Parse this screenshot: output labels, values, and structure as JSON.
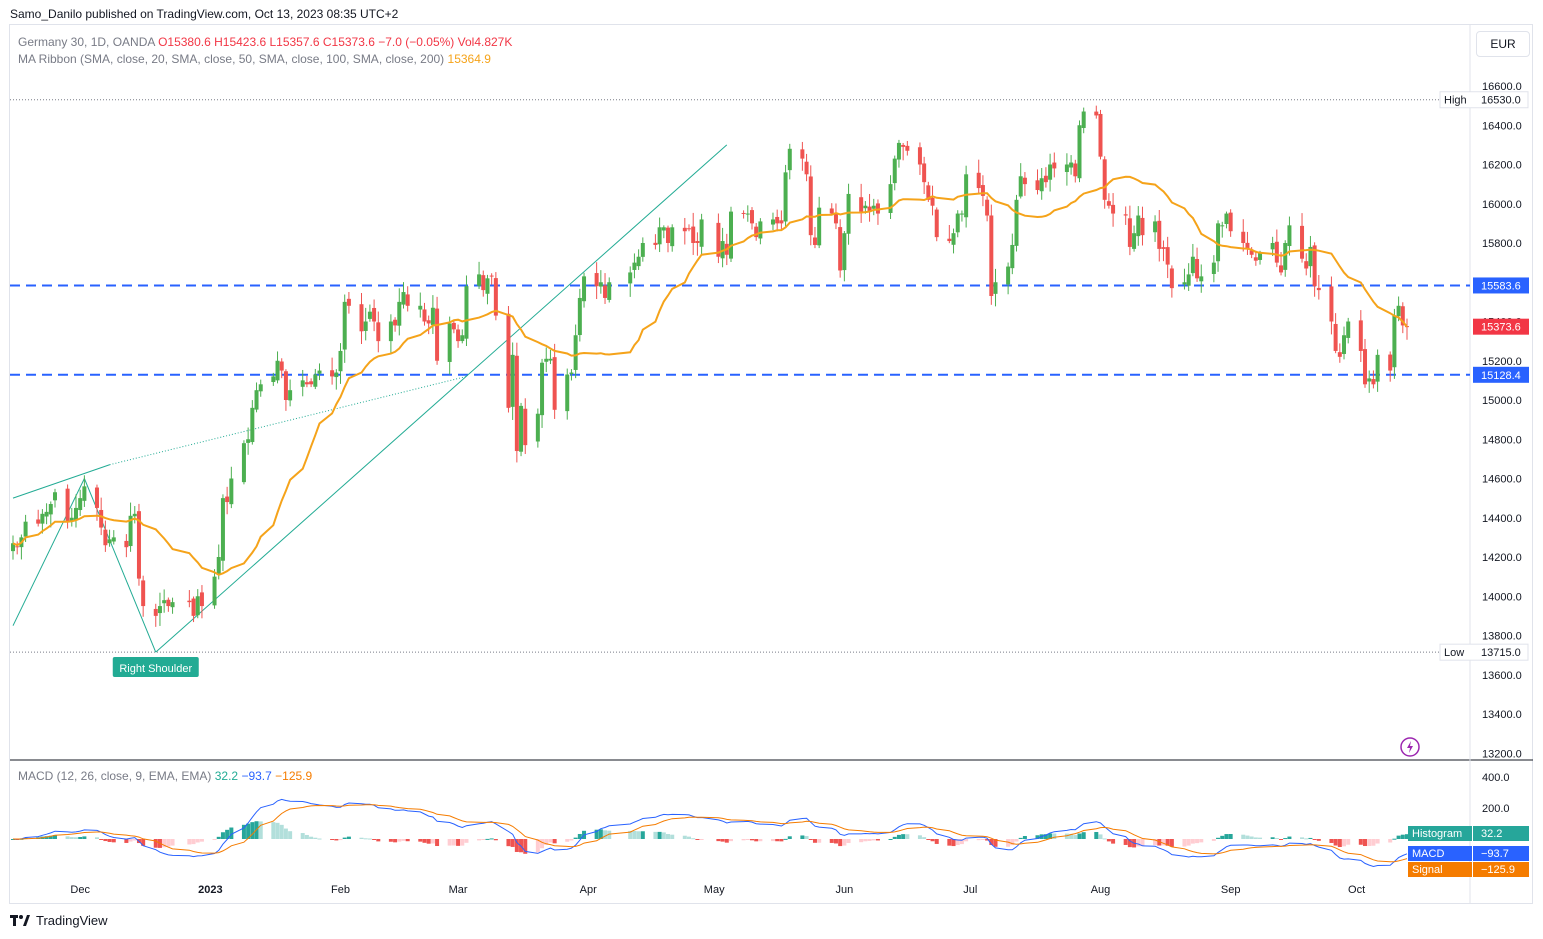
{
  "header": {
    "published_line": "Samo_Danilo published on TradingView.com, Oct 13, 2023 08:35 UTC+2",
    "currency": "EUR"
  },
  "legend": {
    "symbol": "Germany 30, 1D, OANDA",
    "ohlc": "O15380.6  H15423.6  L15357.6  C15373.6  −7.0 (−0.05%)",
    "volume": "Vol4.827K",
    "ma_label": "MA Ribbon (SMA, close, 20, SMA, close, 50, SMA, close, 100, SMA, close, 200)",
    "ma_value": "15364.9",
    "macd_label": "MACD (12, 26, close, 9, EMA, EMA)",
    "macd_hist": "32.2",
    "macd_macd": "−93.7",
    "macd_signal": "−125.9"
  },
  "colors": {
    "up": "#4caf50",
    "down": "#ef5350",
    "ma": "#f5a31a",
    "level": "#2962ff",
    "pattern": "#22ab94",
    "macd": "#2962ff",
    "signal": "#f57c00",
    "label_red": "#f23645"
  },
  "chart_data": [
    {
      "type": "candlestick",
      "series_name": "Germany 30",
      "ylim": [
        13200,
        16600
      ],
      "y_ticks": [
        "16600.0",
        "16400.0",
        "16200.0",
        "16000.0",
        "15800.0",
        "15600.0",
        "15400.0",
        "15200.0",
        "15000.0",
        "14800.0",
        "14600.0",
        "14400.0",
        "14200.0",
        "14000.0",
        "13800.0",
        "13600.0",
        "13400.0",
        "13200.0"
      ],
      "x_ticks": [
        "Dec",
        "2023",
        "Feb",
        "Mar",
        "Apr",
        "May",
        "Jun",
        "Jul",
        "Aug",
        "Sep",
        "Oct"
      ],
      "high": {
        "label": "High",
        "value": "16530.0",
        "y": 16530
      },
      "low": {
        "label": "Low",
        "value": "13715.0",
        "y": 13715
      },
      "levels": [
        {
          "label": "15583.6",
          "y": 15583.6
        },
        {
          "label": "15128.4",
          "y": 15128.4
        }
      ],
      "last_price": {
        "label": "15373.6",
        "y": 15373.6
      },
      "annotation": "Right Shoulder",
      "close_series": [
        [
          "2022-11-15",
          14270
        ],
        [
          "2022-11-16",
          14250
        ],
        [
          "2022-11-17",
          14300
        ],
        [
          "2022-11-18",
          14380
        ],
        [
          "2022-11-21",
          14370
        ],
        [
          "2022-11-22",
          14420
        ],
        [
          "2022-11-23",
          14430
        ],
        [
          "2022-11-24",
          14470
        ],
        [
          "2022-11-25",
          14530
        ],
        [
          "2022-11-28",
          14380
        ],
        [
          "2022-11-29",
          14400
        ],
        [
          "2022-11-30",
          14450
        ],
        [
          "2022-12-01",
          14500
        ],
        [
          "2022-12-02",
          14560
        ],
        [
          "2022-12-05",
          14450
        ],
        [
          "2022-12-06",
          14350
        ],
        [
          "2022-12-07",
          14260
        ],
        [
          "2022-12-08",
          14290
        ],
        [
          "2022-12-09",
          14300
        ],
        [
          "2022-12-12",
          14250
        ],
        [
          "2022-12-13",
          14410
        ],
        [
          "2022-12-14",
          14420
        ],
        [
          "2022-12-15",
          14090
        ],
        [
          "2022-12-16",
          13950
        ],
        [
          "2022-12-19",
          13900
        ],
        [
          "2022-12-20",
          13950
        ],
        [
          "2022-12-21",
          13980
        ],
        [
          "2022-12-22",
          13950
        ],
        [
          "2022-12-23",
          13970
        ],
        [
          "2022-12-27",
          13970
        ],
        [
          "2022-12-28",
          13900
        ],
        [
          "2022-12-29",
          14000
        ],
        [
          "2022-12-30",
          13950
        ],
        [
          "2023-01-02",
          14100
        ],
        [
          "2023-01-03",
          14200
        ],
        [
          "2023-01-04",
          14500
        ],
        [
          "2023-01-05",
          14480
        ],
        [
          "2023-01-06",
          14600
        ],
        [
          "2023-01-09",
          14780
        ],
        [
          "2023-01-10",
          14800
        ],
        [
          "2023-01-11",
          14960
        ],
        [
          "2023-01-12",
          15050
        ],
        [
          "2023-01-13",
          15080
        ],
        [
          "2023-01-16",
          15120
        ],
        [
          "2023-01-17",
          15200
        ],
        [
          "2023-01-18",
          15150
        ],
        [
          "2023-01-19",
          15000
        ],
        [
          "2023-01-20",
          15050
        ],
        [
          "2023-01-23",
          15100
        ],
        [
          "2023-01-24",
          15080
        ],
        [
          "2023-01-25",
          15080
        ],
        [
          "2023-01-26",
          15130
        ],
        [
          "2023-01-27",
          15150
        ],
        [
          "2023-01-30",
          15120
        ],
        [
          "2023-01-31",
          15140
        ],
        [
          "2023-02-01",
          15250
        ],
        [
          "2023-02-02",
          15500
        ],
        [
          "2023-02-03",
          15480
        ],
        [
          "2023-02-06",
          15350
        ],
        [
          "2023-02-07",
          15400
        ],
        [
          "2023-02-08",
          15450
        ],
        [
          "2023-02-09",
          15400
        ],
        [
          "2023-02-10",
          15300
        ],
        [
          "2023-02-13",
          15400
        ],
        [
          "2023-02-14",
          15380
        ],
        [
          "2023-02-15",
          15500
        ],
        [
          "2023-02-16",
          15550
        ],
        [
          "2023-02-17",
          15480
        ],
        [
          "2023-02-20",
          15480
        ],
        [
          "2023-02-21",
          15400
        ],
        [
          "2023-02-22",
          15390
        ],
        [
          "2023-02-23",
          15470
        ],
        [
          "2023-02-24",
          15200
        ],
        [
          "2023-02-27",
          15390
        ],
        [
          "2023-02-28",
          15360
        ],
        [
          "2023-03-01",
          15300
        ],
        [
          "2023-03-02",
          15330
        ],
        [
          "2023-03-03",
          15580
        ],
        [
          "2023-03-06",
          15640
        ],
        [
          "2023-03-07",
          15560
        ],
        [
          "2023-03-08",
          15620
        ],
        [
          "2023-03-09",
          15630
        ],
        [
          "2023-03-10",
          15430
        ],
        [
          "2023-03-13",
          14960
        ],
        [
          "2023-03-14",
          15230
        ],
        [
          "2023-03-15",
          14740
        ],
        [
          "2023-03-16",
          14970
        ],
        [
          "2023-03-17",
          14770
        ],
        [
          "2023-03-20",
          14930
        ],
        [
          "2023-03-21",
          15190
        ],
        [
          "2023-03-22",
          15210
        ],
        [
          "2023-03-23",
          15210
        ],
        [
          "2023-03-24",
          14950
        ],
        [
          "2023-03-27",
          15130
        ],
        [
          "2023-03-28",
          15140
        ],
        [
          "2023-03-29",
          15330
        ],
        [
          "2023-03-30",
          15520
        ],
        [
          "2023-03-31",
          15630
        ],
        [
          "2023-04-03",
          15580
        ],
        [
          "2023-04-04",
          15600
        ],
        [
          "2023-04-05",
          15520
        ],
        [
          "2023-04-06",
          15600
        ],
        [
          "2023-04-11",
          15650
        ],
        [
          "2023-04-12",
          15700
        ],
        [
          "2023-04-13",
          15730
        ],
        [
          "2023-04-14",
          15800
        ],
        [
          "2023-04-17",
          15790
        ],
        [
          "2023-04-18",
          15880
        ],
        [
          "2023-04-19",
          15880
        ],
        [
          "2023-04-20",
          15800
        ],
        [
          "2023-04-21",
          15880
        ],
        [
          "2023-04-24",
          15860
        ],
        [
          "2023-04-25",
          15870
        ],
        [
          "2023-04-26",
          15800
        ],
        [
          "2023-04-27",
          15800
        ],
        [
          "2023-04-28",
          15920
        ],
        [
          "2023-05-02",
          15730
        ],
        [
          "2023-05-03",
          15810
        ],
        [
          "2023-05-04",
          15740
        ],
        [
          "2023-05-05",
          15960
        ],
        [
          "2023-05-08",
          15950
        ],
        [
          "2023-05-09",
          15950
        ],
        [
          "2023-05-10",
          15900
        ],
        [
          "2023-05-11",
          15830
        ],
        [
          "2023-05-12",
          15910
        ],
        [
          "2023-05-15",
          15920
        ],
        [
          "2023-05-16",
          15900
        ],
        [
          "2023-05-17",
          15900
        ],
        [
          "2023-05-18",
          16160
        ],
        [
          "2023-05-19",
          16280
        ],
        [
          "2023-05-22",
          16230
        ],
        [
          "2023-05-23",
          16150
        ],
        [
          "2023-05-24",
          15840
        ],
        [
          "2023-05-25",
          15790
        ],
        [
          "2023-05-26",
          15980
        ],
        [
          "2023-05-29",
          15950
        ],
        [
          "2023-05-30",
          15900
        ],
        [
          "2023-05-31",
          15660
        ],
        [
          "2023-06-01",
          15850
        ],
        [
          "2023-06-02",
          16050
        ],
        [
          "2023-06-05",
          15960
        ],
        [
          "2023-06-06",
          15990
        ],
        [
          "2023-06-07",
          15960
        ],
        [
          "2023-06-08",
          15990
        ],
        [
          "2023-06-09",
          15950
        ],
        [
          "2023-06-12",
          16100
        ],
        [
          "2023-06-13",
          16230
        ],
        [
          "2023-06-14",
          16310
        ],
        [
          "2023-06-15",
          16290
        ],
        [
          "2023-06-16",
          16270
        ],
        [
          "2023-06-19",
          16200
        ],
        [
          "2023-06-20",
          16110
        ],
        [
          "2023-06-21",
          16020
        ],
        [
          "2023-06-22",
          15990
        ],
        [
          "2023-06-23",
          15830
        ],
        [
          "2023-06-26",
          15810
        ],
        [
          "2023-06-27",
          15850
        ],
        [
          "2023-06-28",
          15950
        ],
        [
          "2023-06-29",
          15950
        ],
        [
          "2023-06-30",
          16150
        ],
        [
          "2023-07-03",
          16080
        ],
        [
          "2023-07-04",
          16040
        ],
        [
          "2023-07-05",
          15940
        ],
        [
          "2023-07-06",
          15530
        ],
        [
          "2023-07-07",
          15600
        ],
        [
          "2023-07-10",
          15680
        ],
        [
          "2023-07-11",
          15790
        ],
        [
          "2023-07-12",
          16020
        ],
        [
          "2023-07-13",
          16140
        ],
        [
          "2023-07-14",
          16100
        ],
        [
          "2023-07-17",
          16070
        ],
        [
          "2023-07-18",
          16130
        ],
        [
          "2023-07-19",
          16110
        ],
        [
          "2023-07-20",
          16200
        ],
        [
          "2023-07-21",
          16180
        ],
        [
          "2023-07-24",
          16200
        ],
        [
          "2023-07-25",
          16210
        ],
        [
          "2023-07-26",
          16140
        ],
        [
          "2023-07-27",
          16400
        ],
        [
          "2023-07-28",
          16470
        ],
        [
          "2023-07-31",
          16450
        ],
        [
          "2023-08-01",
          16240
        ],
        [
          "2023-08-02",
          16020
        ],
        [
          "2023-08-03",
          15990
        ],
        [
          "2023-08-04",
          15950
        ],
        [
          "2023-08-07",
          15940
        ],
        [
          "2023-08-08",
          15780
        ],
        [
          "2023-08-09",
          15850
        ],
        [
          "2023-08-10",
          15940
        ],
        [
          "2023-08-11",
          15840
        ],
        [
          "2023-08-14",
          15910
        ],
        [
          "2023-08-15",
          15770
        ],
        [
          "2023-08-16",
          15770
        ],
        [
          "2023-08-17",
          15690
        ],
        [
          "2023-08-18",
          15570
        ],
        [
          "2023-08-21",
          15600
        ],
        [
          "2023-08-22",
          15640
        ],
        [
          "2023-08-23",
          15730
        ],
        [
          "2023-08-24",
          15620
        ],
        [
          "2023-08-25",
          15630
        ],
        [
          "2023-08-28",
          15700
        ],
        [
          "2023-08-29",
          15900
        ],
        [
          "2023-08-30",
          15890
        ],
        [
          "2023-08-31",
          15950
        ],
        [
          "2023-09-01",
          15860
        ],
        [
          "2023-09-04",
          15800
        ],
        [
          "2023-09-05",
          15770
        ],
        [
          "2023-09-06",
          15740
        ],
        [
          "2023-09-07",
          15710
        ],
        [
          "2023-09-08",
          15750
        ],
        [
          "2023-09-11",
          15800
        ],
        [
          "2023-09-12",
          15700
        ],
        [
          "2023-09-13",
          15650
        ],
        [
          "2023-09-14",
          15800
        ],
        [
          "2023-09-15",
          15890
        ],
        [
          "2023-09-18",
          15720
        ],
        [
          "2023-09-19",
          15670
        ],
        [
          "2023-09-20",
          15780
        ],
        [
          "2023-09-21",
          15580
        ],
        [
          "2023-09-22",
          15560
        ],
        [
          "2023-09-25",
          15400
        ],
        [
          "2023-09-26",
          15250
        ],
        [
          "2023-09-27",
          15220
        ],
        [
          "2023-09-28",
          15330
        ],
        [
          "2023-09-29",
          15400
        ],
        [
          "2023-10-02",
          15250
        ],
        [
          "2023-10-03",
          15080
        ],
        [
          "2023-10-04",
          15110
        ],
        [
          "2023-10-05",
          15080
        ],
        [
          "2023-10-06",
          15230
        ],
        [
          "2023-10-09",
          15150
        ],
        [
          "2023-10-10",
          15430
        ],
        [
          "2023-10-11",
          15480
        ],
        [
          "2023-10-12",
          15380
        ],
        [
          "2023-10-13",
          15373.6
        ]
      ]
    },
    {
      "type": "macd",
      "ylim": [
        -240,
        440
      ],
      "y_ticks": [
        "400.0",
        "200.0"
      ],
      "histogram": 32.2,
      "macd": -93.7,
      "signal": -125.9,
      "legend": [
        "Histogram",
        "MACD",
        "Signal"
      ]
    }
  ],
  "footer": {
    "brand": "TradingView"
  }
}
